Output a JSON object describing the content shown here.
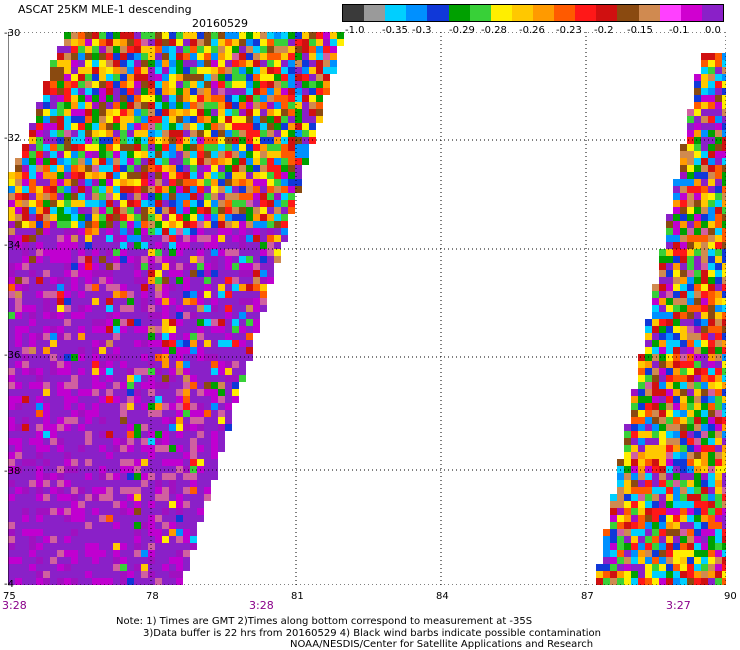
{
  "title": "ASCAT 25KM MLE-1 descending",
  "date": "20160529",
  "colorbar": {
    "colors": [
      "#3a3a3a",
      "#9a9a9a",
      "#00cfff",
      "#0090ff",
      "#1038d8",
      "#00a000",
      "#38d038",
      "#ffee00",
      "#ffc800",
      "#ff9a00",
      "#ff5a00",
      "#ff1818",
      "#d01010",
      "#8a4a10",
      "#d08a50",
      "#ff40ff",
      "#d000d0",
      "#8a20c8"
    ],
    "tick_labels": [
      "-1.0",
      "-0.35",
      "-0.3",
      "-0.29",
      "-0.28",
      "-0.26",
      "-0.23",
      "-0.2",
      "-0.15",
      "-0.1",
      "0.0"
    ]
  },
  "axes": {
    "lat_labels": [
      "-30",
      "-32",
      "-34",
      "-36",
      "-38",
      "-4"
    ],
    "lon_labels": [
      "75",
      "78",
      "81",
      "84",
      "87",
      "90"
    ],
    "lat_range": [
      -40,
      -30
    ],
    "lon_range": [
      75,
      90
    ]
  },
  "time_labels": [
    "3:28",
    "3:28",
    "3:27"
  ],
  "notes": [
    "Note: 1) Times are GMT 2)Times along bottom correspond to measurement at -35S",
    "3)Data buffer is 22 hrs from 20160529 4) Black wind barbs indicate possible contamination",
    "NOAA/NESDIS/Center for Satellite Applications and Research"
  ]
}
